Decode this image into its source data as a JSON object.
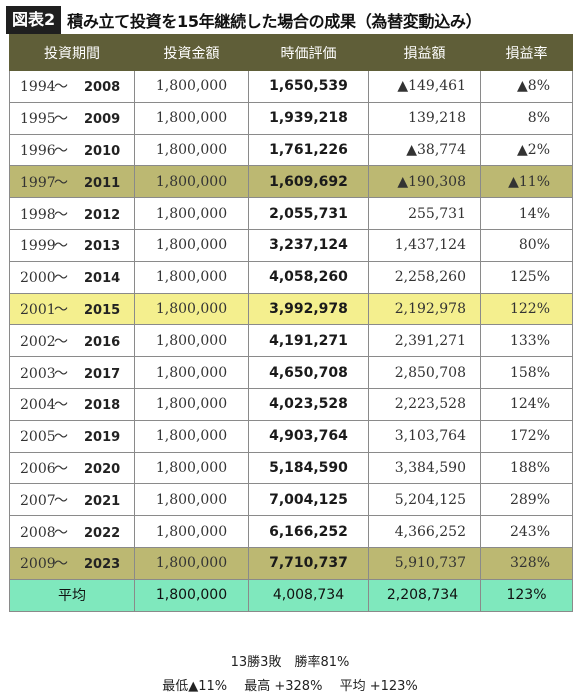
{
  "figure": {
    "label": "図表2",
    "title": "積み立て投資を15年継続した場合の成果（為替変動込み）"
  },
  "table": {
    "headers": [
      "投資期間",
      "投資金額",
      "時価評価",
      "損益額",
      "損益率"
    ],
    "tilde": "〜",
    "rows": [
      {
        "from": "1994",
        "to": "2008",
        "cost": "1,800,000",
        "value": "1,650,539",
        "gain": "▲149,461",
        "rate": "▲8%"
      },
      {
        "from": "1995",
        "to": "2009",
        "cost": "1,800,000",
        "value": "1,939,218",
        "gain": "139,218",
        "rate": "8%"
      },
      {
        "from": "1996",
        "to": "2010",
        "cost": "1,800,000",
        "value": "1,761,226",
        "gain": "▲38,774",
        "rate": "▲2%"
      },
      {
        "from": "1997",
        "to": "2011",
        "cost": "1,800,000",
        "value": "1,609,692",
        "gain": "▲190,308",
        "rate": "▲11%",
        "highlight": "olive"
      },
      {
        "from": "1998",
        "to": "2012",
        "cost": "1,800,000",
        "value": "2,055,731",
        "gain": "255,731",
        "rate": "14%"
      },
      {
        "from": "1999",
        "to": "2013",
        "cost": "1,800,000",
        "value": "3,237,124",
        "gain": "1,437,124",
        "rate": "80%"
      },
      {
        "from": "2000",
        "to": "2014",
        "cost": "1,800,000",
        "value": "4,058,260",
        "gain": "2,258,260",
        "rate": "125%"
      },
      {
        "from": "2001",
        "to": "2015",
        "cost": "1,800,000",
        "value": "3,992,978",
        "gain": "2,192,978",
        "rate": "122%",
        "highlight": "yellow"
      },
      {
        "from": "2002",
        "to": "2016",
        "cost": "1,800,000",
        "value": "4,191,271",
        "gain": "2,391,271",
        "rate": "133%"
      },
      {
        "from": "2003",
        "to": "2017",
        "cost": "1,800,000",
        "value": "4,650,708",
        "gain": "2,850,708",
        "rate": "158%"
      },
      {
        "from": "2004",
        "to": "2018",
        "cost": "1,800,000",
        "value": "4,023,528",
        "gain": "2,223,528",
        "rate": "124%"
      },
      {
        "from": "2005",
        "to": "2019",
        "cost": "1,800,000",
        "value": "4,903,764",
        "gain": "3,103,764",
        "rate": "172%"
      },
      {
        "from": "2006",
        "to": "2020",
        "cost": "1,800,000",
        "value": "5,184,590",
        "gain": "3,384,590",
        "rate": "188%"
      },
      {
        "from": "2007",
        "to": "2021",
        "cost": "1,800,000",
        "value": "7,004,125",
        "gain": "5,204,125",
        "rate": "289%"
      },
      {
        "from": "2008",
        "to": "2022",
        "cost": "1,800,000",
        "value": "6,166,252",
        "gain": "4,366,252",
        "rate": "243%"
      },
      {
        "from": "2009",
        "to": "2023",
        "cost": "1,800,000",
        "value": "7,710,737",
        "gain": "5,910,737",
        "rate": "328%",
        "highlight": "olive"
      }
    ],
    "average": {
      "label": "平均",
      "cost": "1,800,000",
      "value": "4,008,734",
      "gain": "2,208,734",
      "rate": "123%"
    }
  },
  "summary": {
    "line1": "13勝3敗　勝率81%",
    "line2": "最低▲11%　 最高 +328%　 平均 +123%"
  },
  "colors": {
    "header": "#5f5e38",
    "olive": "#bcb872",
    "yellow": "#f4ef8e",
    "average": "#7fe8bd"
  }
}
